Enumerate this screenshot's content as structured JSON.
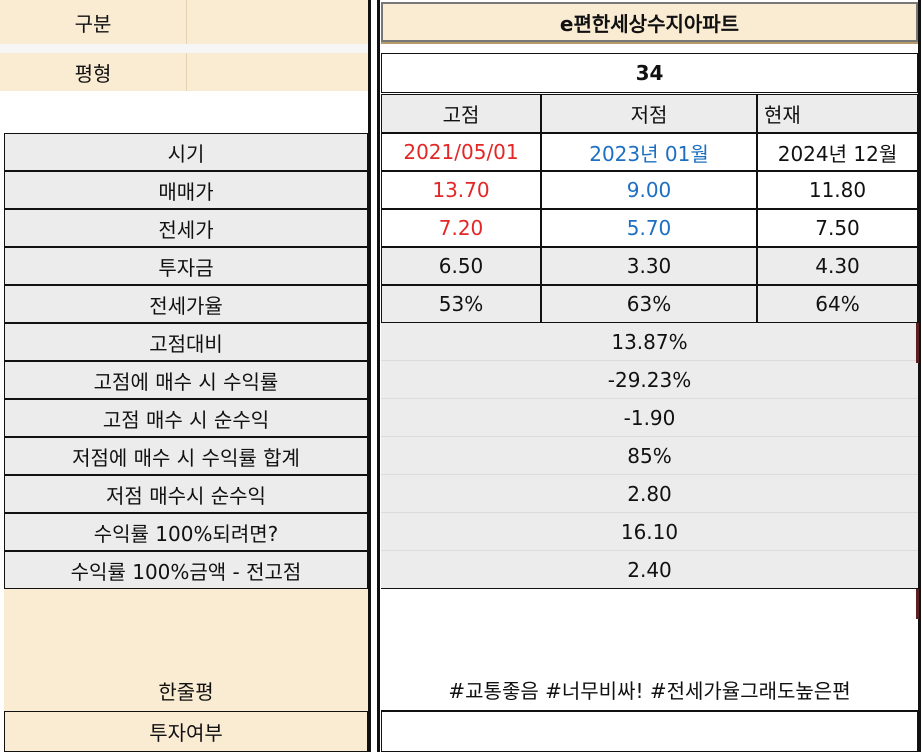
{
  "header": {
    "col_label": "구분",
    "apartment_name": "e편한세상수지아파트",
    "size_label": "평형",
    "size_value": "34"
  },
  "columns": [
    "고점",
    "저점",
    "현재"
  ],
  "rows": [
    {
      "label": "시기",
      "values": [
        "2021/05/01",
        "2023년 01월",
        "2024년 12월"
      ]
    },
    {
      "label": "매매가",
      "values": [
        "13.70",
        "9.00",
        "11.80"
      ]
    },
    {
      "label": "전세가",
      "values": [
        "7.20",
        "5.70",
        "7.50"
      ]
    },
    {
      "label": "투자금",
      "values": [
        "6.50",
        "3.30",
        "4.30"
      ]
    },
    {
      "label": "전세가율",
      "values": [
        "53%",
        "63%",
        "64%"
      ]
    }
  ],
  "metrics": [
    {
      "label": "고점대비",
      "value": "13.87%"
    },
    {
      "label": "고점에 매수 시 수익률",
      "value": "-29.23%"
    },
    {
      "label": "고점 매수 시 순수익",
      "value": "-1.90"
    },
    {
      "label": "저점에 매수 시 수익률 합계",
      "value": "85%"
    },
    {
      "label": "저점 매수시 순수익",
      "value": "2.80"
    },
    {
      "label": "수익률 100%되려면?",
      "value": "16.10"
    },
    {
      "label": "수익률 100%금액 - 전고점",
      "value": "2.40"
    }
  ],
  "review": {
    "label": "한줄평",
    "value": "#교통좋음 #너무비싸! #전세가율그래도높은편"
  },
  "invest": {
    "label": "투자여부",
    "value": ""
  },
  "colors": {
    "high": "#e32626",
    "low": "#1d6fc1",
    "header_bg": "#faebd3",
    "row_bg": "#ececec"
  }
}
